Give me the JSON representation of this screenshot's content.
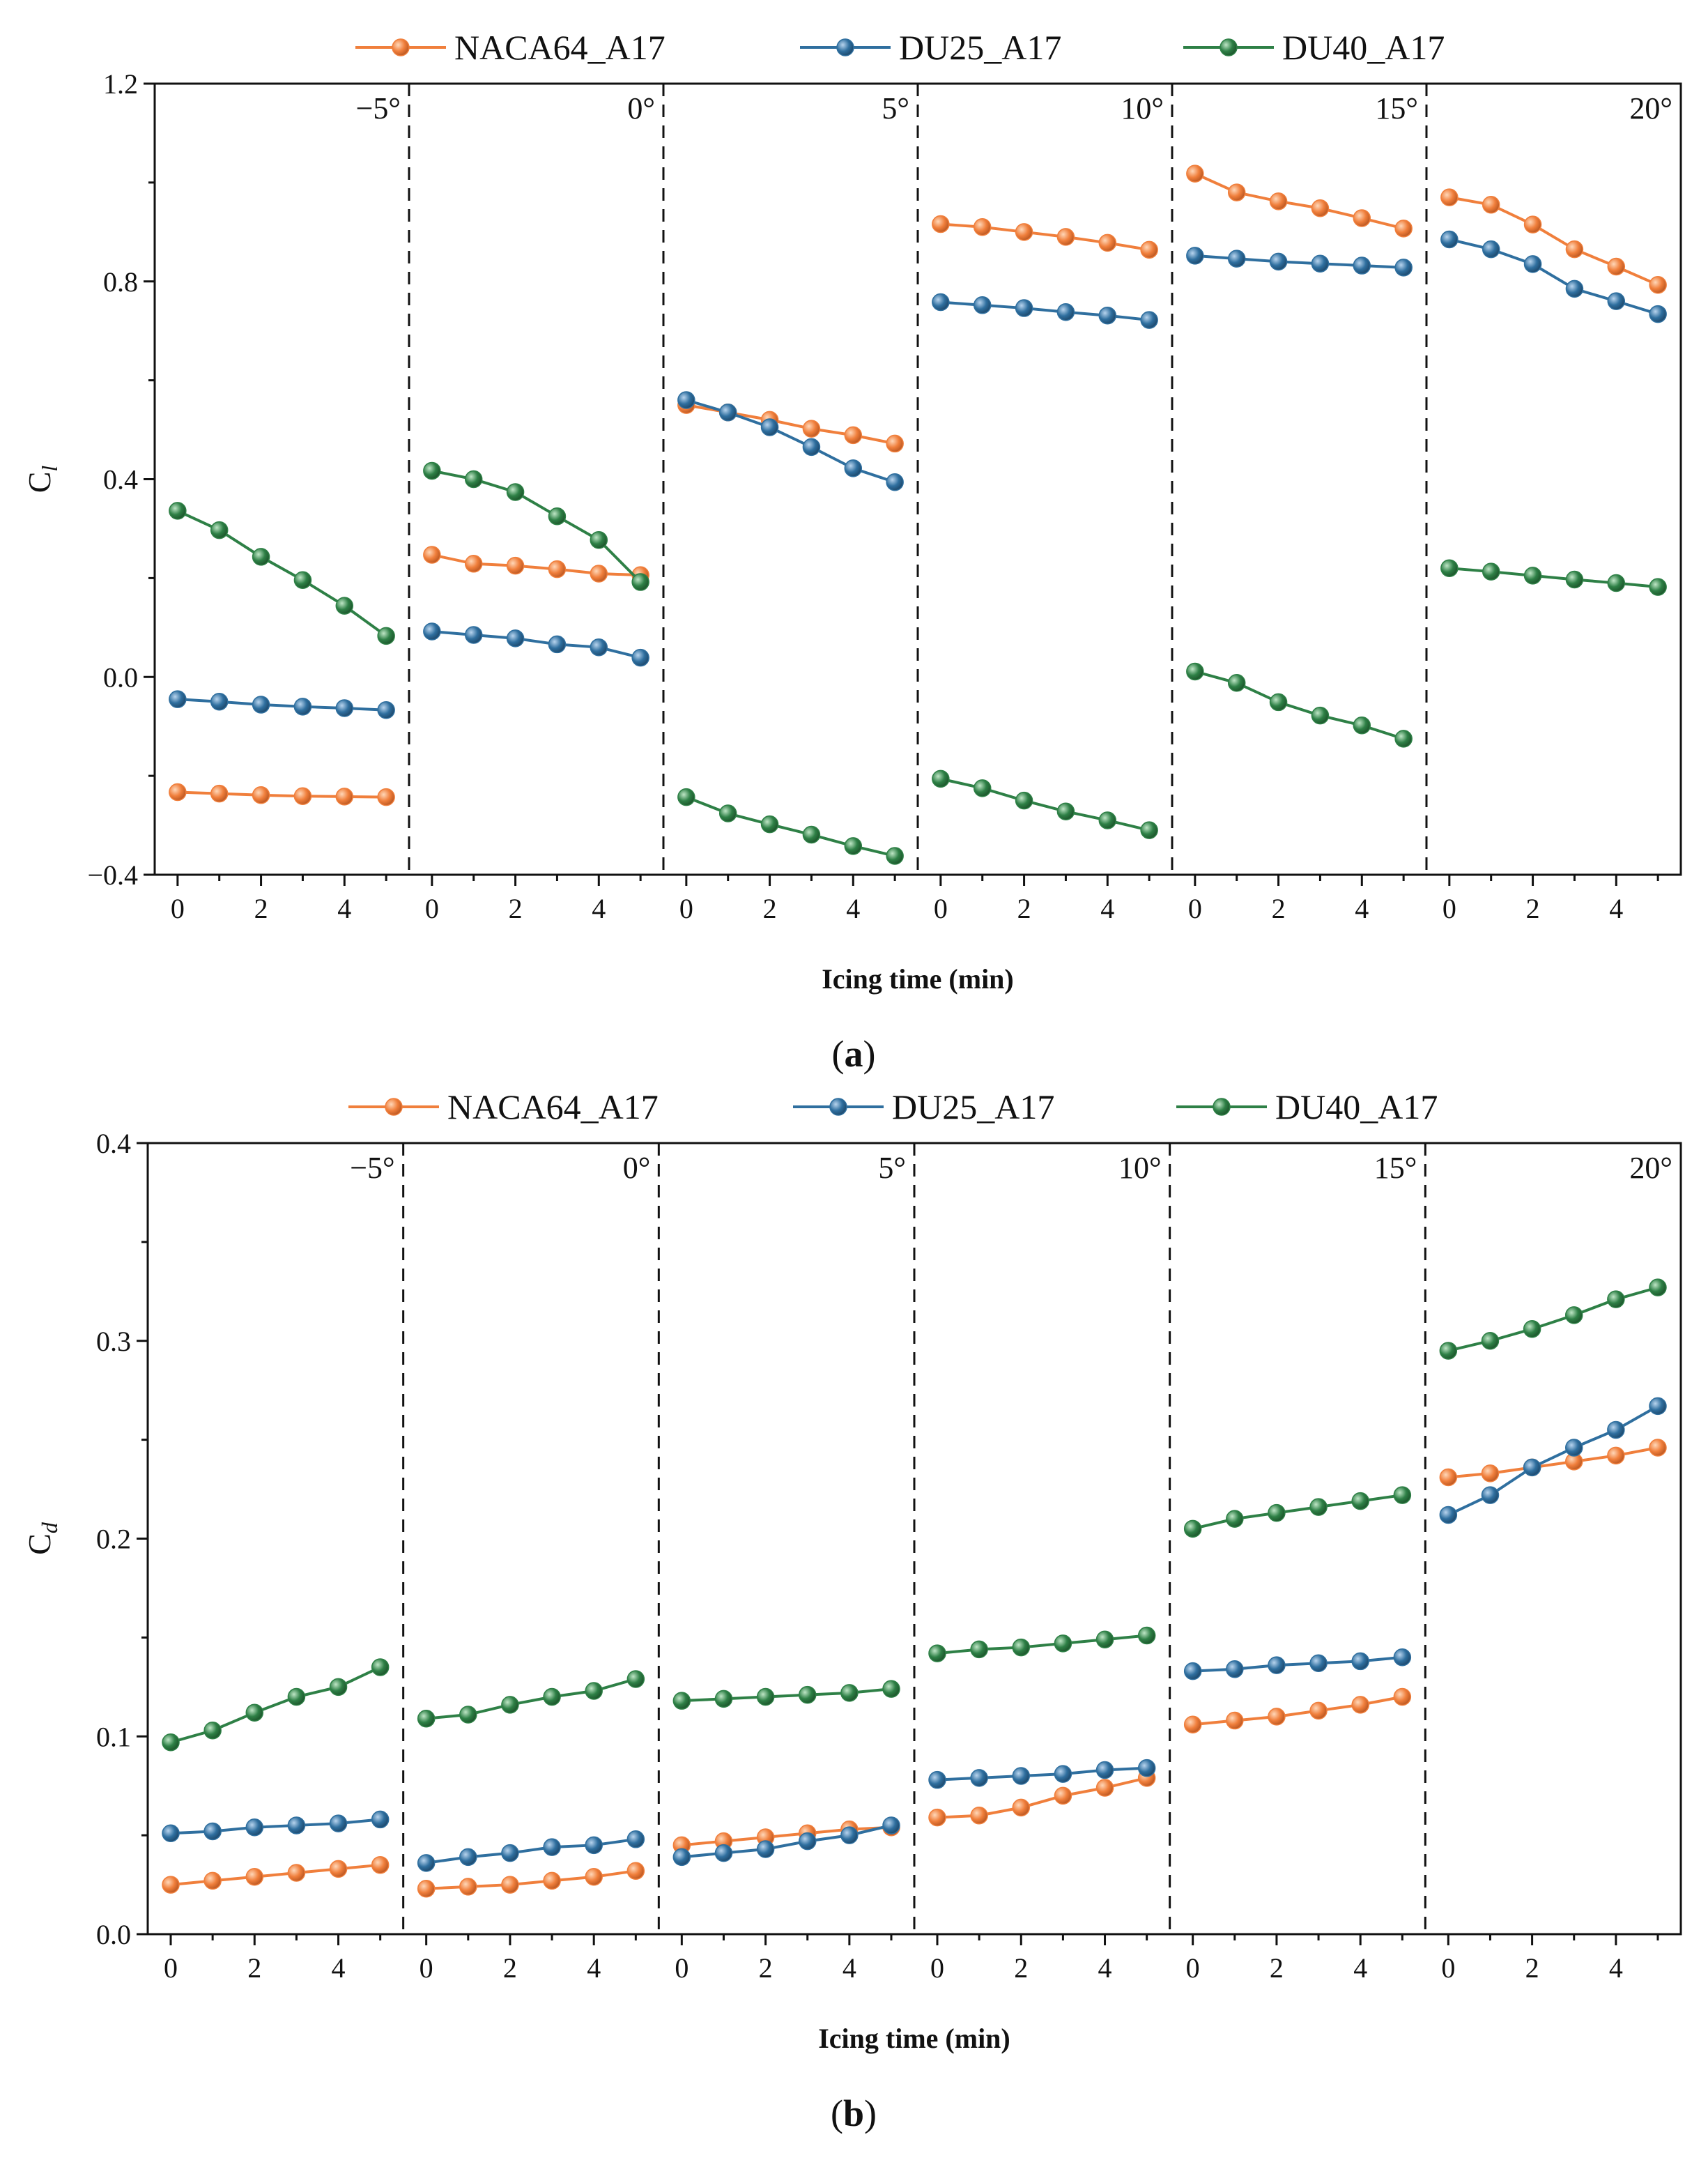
{
  "colors": {
    "NACA64_A17": "#F07F3C",
    "DU25_A17": "#2F6F9F",
    "DU40_A17": "#2E8046",
    "axis": "#111111"
  },
  "chart_data": [
    {
      "type": "line",
      "panel_label": "a",
      "title": "",
      "xlabel": "Icing time (min)",
      "ylabel": "C",
      "ylabel_subscript": "l",
      "ylim": [
        -0.4,
        1.2
      ],
      "yticks": [
        -0.4,
        0.0,
        0.4,
        0.8,
        1.2
      ],
      "ytick_labels": [
        "−0.4",
        "0.0",
        "0.4",
        "0.8",
        "1.2"
      ],
      "xticks": [
        0,
        2,
        4
      ],
      "xtick_labels": [
        "0",
        "2",
        "4"
      ],
      "legend_position": "top",
      "grid": false,
      "x": [
        0,
        1,
        2,
        3,
        4,
        5
      ],
      "subplots": [
        {
          "label": "−5°",
          "series": [
            {
              "name": "NACA64_A17",
              "values": [
                -0.233,
                -0.236,
                -0.239,
                -0.241,
                -0.242,
                -0.243
              ]
            },
            {
              "name": "DU25_A17",
              "values": [
                -0.045,
                -0.05,
                -0.056,
                -0.06,
                -0.063,
                -0.067
              ]
            },
            {
              "name": "DU40_A17",
              "values": [
                0.336,
                0.297,
                0.243,
                0.196,
                0.144,
                0.083
              ]
            }
          ]
        },
        {
          "label": "0°",
          "series": [
            {
              "name": "NACA64_A17",
              "values": [
                0.247,
                0.229,
                0.225,
                0.218,
                0.209,
                0.206
              ]
            },
            {
              "name": "DU25_A17",
              "values": [
                0.092,
                0.085,
                0.078,
                0.066,
                0.06,
                0.039
              ]
            },
            {
              "name": "DU40_A17",
              "values": [
                0.417,
                0.4,
                0.374,
                0.325,
                0.277,
                0.192
              ]
            }
          ]
        },
        {
          "label": "5°",
          "series": [
            {
              "name": "NACA64_A17",
              "values": [
                0.55,
                0.535,
                0.52,
                0.502,
                0.489,
                0.472
              ]
            },
            {
              "name": "DU25_A17",
              "values": [
                0.56,
                0.535,
                0.505,
                0.465,
                0.422,
                0.394
              ]
            },
            {
              "name": "DU40_A17",
              "values": [
                -0.243,
                -0.276,
                -0.298,
                -0.319,
                -0.342,
                -0.362
              ]
            }
          ]
        },
        {
          "label": "10°",
          "series": [
            {
              "name": "NACA64_A17",
              "values": [
                0.916,
                0.91,
                0.9,
                0.89,
                0.878,
                0.864
              ]
            },
            {
              "name": "DU25_A17",
              "values": [
                0.758,
                0.752,
                0.746,
                0.738,
                0.731,
                0.722
              ]
            },
            {
              "name": "DU40_A17",
              "values": [
                -0.206,
                -0.225,
                -0.25,
                -0.272,
                -0.29,
                -0.31
              ]
            }
          ]
        },
        {
          "label": "15°",
          "series": [
            {
              "name": "NACA64_A17",
              "values": [
                1.018,
                0.98,
                0.962,
                0.948,
                0.928,
                0.907
              ]
            },
            {
              "name": "DU25_A17",
              "values": [
                0.852,
                0.846,
                0.84,
                0.836,
                0.832,
                0.828
              ]
            },
            {
              "name": "DU40_A17",
              "values": [
                0.011,
                -0.012,
                -0.051,
                -0.078,
                -0.098,
                -0.125
              ]
            }
          ]
        },
        {
          "label": "20°",
          "series": [
            {
              "name": "NACA64_A17",
              "values": [
                0.97,
                0.955,
                0.915,
                0.865,
                0.83,
                0.793
              ]
            },
            {
              "name": "DU25_A17",
              "values": [
                0.885,
                0.865,
                0.835,
                0.785,
                0.76,
                0.734
              ]
            },
            {
              "name": "DU40_A17",
              "values": [
                0.22,
                0.213,
                0.205,
                0.197,
                0.19,
                0.182
              ]
            }
          ]
        }
      ]
    },
    {
      "type": "line",
      "panel_label": "b",
      "title": "",
      "xlabel": "Icing time (min)",
      "ylabel": "C",
      "ylabel_subscript": "d",
      "ylim": [
        0.0,
        0.4
      ],
      "yticks": [
        0.0,
        0.1,
        0.2,
        0.3,
        0.4
      ],
      "ytick_labels": [
        "0.0",
        "0.1",
        "0.2",
        "0.3",
        "0.4"
      ],
      "xticks": [
        0,
        2,
        4
      ],
      "xtick_labels": [
        "0",
        "2",
        "4"
      ],
      "legend_position": "top",
      "grid": false,
      "x": [
        0,
        1,
        2,
        3,
        4,
        5
      ],
      "subplots": [
        {
          "label": "−5°",
          "series": [
            {
              "name": "NACA64_A17",
              "values": [
                0.025,
                0.027,
                0.029,
                0.031,
                0.033,
                0.035
              ]
            },
            {
              "name": "DU25_A17",
              "values": [
                0.051,
                0.052,
                0.054,
                0.055,
                0.056,
                0.058
              ]
            },
            {
              "name": "DU40_A17",
              "values": [
                0.097,
                0.103,
                0.112,
                0.12,
                0.125,
                0.135
              ]
            }
          ]
        },
        {
          "label": "0°",
          "series": [
            {
              "name": "NACA64_A17",
              "values": [
                0.023,
                0.024,
                0.025,
                0.027,
                0.029,
                0.032
              ]
            },
            {
              "name": "DU25_A17",
              "values": [
                0.036,
                0.039,
                0.041,
                0.044,
                0.045,
                0.048
              ]
            },
            {
              "name": "DU40_A17",
              "values": [
                0.109,
                0.111,
                0.116,
                0.12,
                0.123,
                0.129
              ]
            }
          ]
        },
        {
          "label": "5°",
          "series": [
            {
              "name": "NACA64_A17",
              "values": [
                0.045,
                0.047,
                0.049,
                0.051,
                0.053,
                0.054
              ]
            },
            {
              "name": "DU25_A17",
              "values": [
                0.039,
                0.041,
                0.043,
                0.047,
                0.05,
                0.055
              ]
            },
            {
              "name": "DU40_A17",
              "values": [
                0.118,
                0.119,
                0.12,
                0.121,
                0.122,
                0.124
              ]
            }
          ]
        },
        {
          "label": "10°",
          "series": [
            {
              "name": "NACA64_A17",
              "values": [
                0.059,
                0.06,
                0.064,
                0.07,
                0.074,
                0.079
              ]
            },
            {
              "name": "DU25_A17",
              "values": [
                0.078,
                0.079,
                0.08,
                0.081,
                0.083,
                0.084
              ]
            },
            {
              "name": "DU40_A17",
              "values": [
                0.142,
                0.144,
                0.145,
                0.147,
                0.149,
                0.151
              ]
            }
          ]
        },
        {
          "label": "15°",
          "series": [
            {
              "name": "NACA64_A17",
              "values": [
                0.106,
                0.108,
                0.11,
                0.113,
                0.116,
                0.12
              ]
            },
            {
              "name": "DU25_A17",
              "values": [
                0.133,
                0.134,
                0.136,
                0.137,
                0.138,
                0.14
              ]
            },
            {
              "name": "DU40_A17",
              "values": [
                0.205,
                0.21,
                0.213,
                0.216,
                0.219,
                0.222
              ]
            }
          ]
        },
        {
          "label": "20°",
          "series": [
            {
              "name": "NACA64_A17",
              "values": [
                0.231,
                0.233,
                0.236,
                0.239,
                0.242,
                0.246
              ]
            },
            {
              "name": "DU25_A17",
              "values": [
                0.212,
                0.222,
                0.236,
                0.246,
                0.255,
                0.267
              ]
            },
            {
              "name": "DU40_A17",
              "values": [
                0.295,
                0.3,
                0.306,
                0.313,
                0.321,
                0.327
              ]
            }
          ]
        }
      ]
    }
  ]
}
